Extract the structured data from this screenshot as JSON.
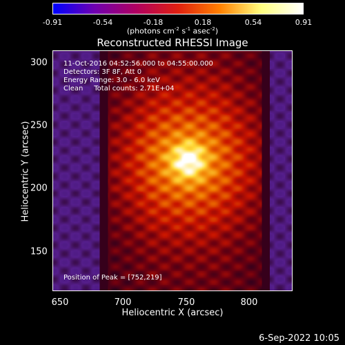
{
  "colorbar": {
    "ticks": [
      "-0.91",
      "-0.54",
      "-0.18",
      "0.18",
      "0.54",
      "0.91"
    ],
    "units_prefix": "(photons cm",
    "units_exp1": "-2",
    "units_mid1": " s",
    "units_exp2": "-1",
    "units_mid2": " asec",
    "units_exp3": "-2",
    "units_suffix": ")",
    "colors": [
      "#0000ff",
      "#7000b0",
      "#b00060",
      "#e02010",
      "#ff8000",
      "#ffff80",
      "#ffffff"
    ]
  },
  "title": "Reconstructed RHESSI Image",
  "info": {
    "time": "11-Oct-2016 04:52:56.000 to 04:55:00.000",
    "detectors": "Detectors: 3F 8F, Att 0",
    "energy": "Energy Range: 3.0 - 6.0 keV",
    "clean": "Clean     Total counts: 2.71E+04",
    "peak": "Position of Peak = [752,219]"
  },
  "axes": {
    "xlabel": "Heliocentric X (arcsec)",
    "ylabel": "Heliocentric Y (arcsec)",
    "xticks": [
      "650",
      "700",
      "750",
      "800"
    ],
    "yticks": [
      "300",
      "250",
      "200",
      "150"
    ],
    "xlim": [
      645,
      835
    ],
    "ylim": [
      115,
      306
    ]
  },
  "peak": {
    "x": 752,
    "y": 219
  },
  "footer": {
    "date": "6-Sep-2022 10:05"
  }
}
